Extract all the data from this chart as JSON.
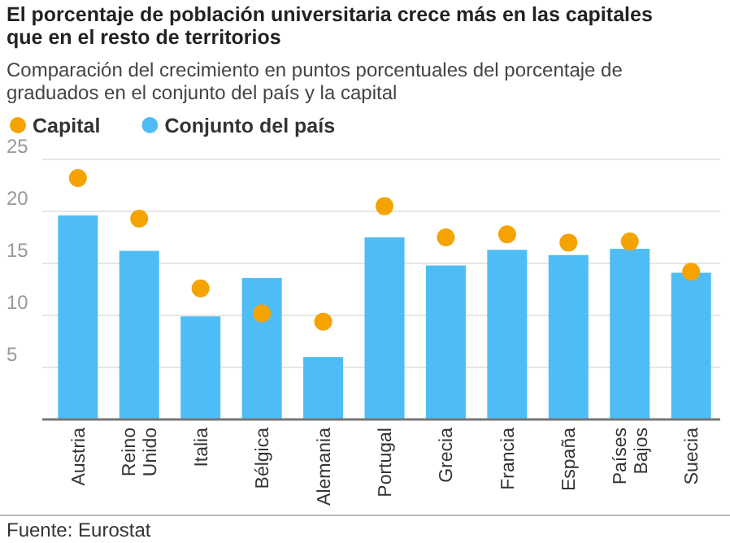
{
  "chart_data": {
    "type": "bar",
    "title": "El porcentaje de población universitaria crece más en las capitales que en el resto de territorios",
    "subtitle": "Comparación del crecimiento en puntos porcentuales del porcentaje de graduados en el conjunto del país y la capital",
    "categories": [
      "Austria",
      "Reino Unido",
      "Italia",
      "Bélgica",
      "Alemania",
      "Portugal",
      "Grecia",
      "Francia",
      "España",
      "Países Bajos",
      "Suecia"
    ],
    "series": [
      {
        "name": "Capital",
        "type": "scatter",
        "color": "#f5a300",
        "marker": "circle",
        "values": [
          23.2,
          19.3,
          12.6,
          10.2,
          9.4,
          20.5,
          17.5,
          17.8,
          17.0,
          17.1,
          14.2
        ]
      },
      {
        "name": "Conjunto del país",
        "type": "bar",
        "color": "#4fbdf5",
        "values": [
          19.6,
          16.2,
          9.9,
          13.6,
          6.0,
          17.5,
          14.8,
          16.3,
          15.8,
          16.4,
          14.1
        ]
      }
    ],
    "ylim": [
      0,
      25
    ],
    "yticks": [
      {
        "value": 0,
        "label": null
      },
      5,
      10,
      15,
      20,
      25
    ],
    "grid": "y",
    "legend": "top left",
    "annotations": [
      "Fuente: Eurostat"
    ]
  }
}
